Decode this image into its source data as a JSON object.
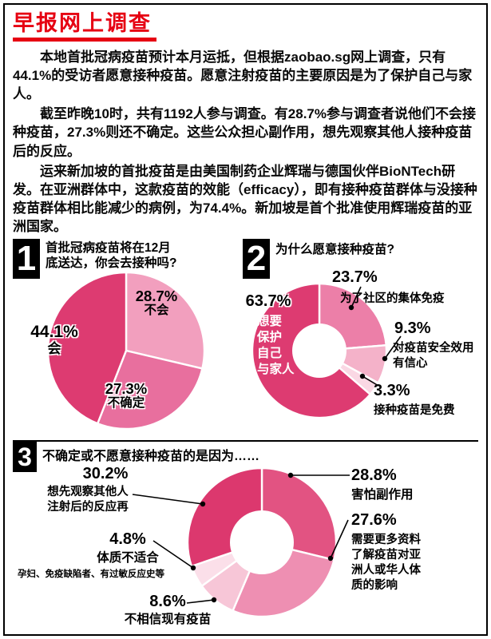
{
  "header": {
    "title": "早报网上调查",
    "accent_color": "#e60012"
  },
  "intro": {
    "p1": "本地首批冠病疫苗预计本月运抵，但根据zaobao.sg网上调查，只有44.1%的受访者愿意接种疫苗。愿意注射疫苗的主要原因是为了保护自己与家人。",
    "p2": "截至昨晚10时，共有1192人参与调查。有28.7%参与调查者说他们不会接种疫苗，27.3%则还不确定。这些公众担心副作用，想先观察其他人接种疫苗后的反应。",
    "p3": "运来新加坡的首批疫苗是由美国制药企业辉瑞与德国伙伴BioNTech研发。在亚洲群体中，这款疫苗的效能（efficacy），即有接种疫苗群体与没接种疫苗群体相比能减少的病例，为74.4%。新加坡是首个批准使用辉瑞疫苗的亚洲国家。"
  },
  "sections": {
    "s1": {
      "number": "1",
      "title": "首批冠病疫苗将在12月底送达，你会去接种吗?"
    },
    "s2": {
      "number": "2",
      "title": "为什么愿意接种疫苗?"
    },
    "s3": {
      "number": "3",
      "title": "不确定或不愿意接种疫苗的是因为……"
    }
  },
  "chart_data": [
    {
      "id": "chart1",
      "type": "pie",
      "title": "首批冠病疫苗将在12月底送达，你会去接种吗?",
      "unit": "%",
      "legend_position": "on-chart",
      "slices": [
        {
          "label": "不会",
          "value": 28.7,
          "pct": "28.7%",
          "color": "#f29fbe"
        },
        {
          "label": "不确定",
          "value": 27.3,
          "pct": "27.3%",
          "color": "#e86f9e"
        },
        {
          "label": "会",
          "value": 44.1,
          "pct": "44.1%",
          "color": "#dd3b71"
        }
      ]
    },
    {
      "id": "chart2",
      "type": "pie",
      "donut": true,
      "title": "为什么愿意接种疫苗?",
      "unit": "%",
      "legend_position": "callouts-right",
      "slices": [
        {
          "label": "为了社区的集体免疫",
          "value": 23.7,
          "pct": "23.7%",
          "color": "#ec7fa8"
        },
        {
          "label": "对疫苗安全效用有信心",
          "label_lines": "对疫苗安全效用\n有信心",
          "value": 9.3,
          "pct": "9.3%",
          "color": "#f4b2c9"
        },
        {
          "label": "接种疫苗是免费",
          "value": 3.3,
          "pct": "3.3%",
          "color": "#fad8e4"
        },
        {
          "label": "想要保护自己与家人",
          "label_lines": "想要\n保护\n自己\n与家人",
          "value": 63.7,
          "pct": "63.7%",
          "color": "#dd3b71"
        }
      ]
    },
    {
      "id": "chart3",
      "type": "pie",
      "donut": true,
      "title": "不确定或不愿意接种疫苗的是因为……",
      "unit": "%",
      "legend_position": "callouts-around",
      "slices": [
        {
          "label": "害怕副作用",
          "value": 28.8,
          "pct": "28.8%",
          "color": "#e25382"
        },
        {
          "label": "需要更多资料了解疫苗对亚洲人或华人体质的影响",
          "label_lines": "需要更多资料\n了解疫苗对亚\n洲人或华人体\n质的影响",
          "value": 27.6,
          "pct": "27.6%",
          "color": "#ee8fb2"
        },
        {
          "label": "不相信现有疫苗",
          "value": 8.6,
          "pct": "8.6%",
          "color": "#f7c6d7"
        },
        {
          "label": "体质不适合",
          "note": "孕妇、免疫缺陷者、有过敏反应史等",
          "value": 4.8,
          "pct": "4.8%",
          "color": "#fbdfe9"
        },
        {
          "label": "想先观察其他人注射后的反应再",
          "label_lines": "想先观察其他人\n注射后的反应再",
          "value": 30.2,
          "pct": "30.2%",
          "color": "#dc386e"
        }
      ]
    }
  ]
}
